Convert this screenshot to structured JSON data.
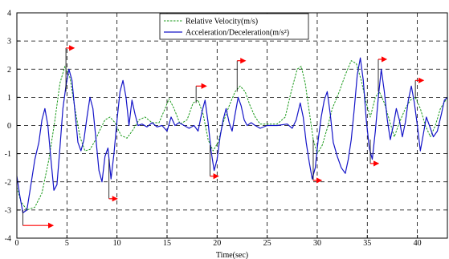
{
  "chart_data": {
    "type": "line",
    "xlabel": "Time(sec)",
    "ylabel": "",
    "xlim": [
      0,
      43
    ],
    "ylim": [
      -4,
      4
    ],
    "x_ticks": [
      0,
      5,
      10,
      15,
      20,
      25,
      30,
      35,
      40
    ],
    "y_ticks": [
      -4,
      -3,
      -2,
      -1,
      0,
      1,
      2,
      3,
      4
    ],
    "grid": true,
    "legend_position": "top-center",
    "series": [
      {
        "name": "Relative Velocity(m/s)",
        "color": "#1a9a1a",
        "style": "dashed",
        "points": [
          [
            0,
            -2.2
          ],
          [
            0.4,
            -2.7
          ],
          [
            1,
            -3.0
          ],
          [
            1.8,
            -2.9
          ],
          [
            2.5,
            -2.4
          ],
          [
            3.2,
            -1.2
          ],
          [
            3.8,
            0.2
          ],
          [
            4.3,
            1.5
          ],
          [
            4.8,
            2.1
          ],
          [
            5.3,
            1.7
          ],
          [
            5.8,
            0.6
          ],
          [
            6.3,
            -0.4
          ],
          [
            6.8,
            -0.9
          ],
          [
            7.3,
            -0.85
          ],
          [
            7.8,
            -0.55
          ],
          [
            8.3,
            -0.15
          ],
          [
            8.8,
            0.2
          ],
          [
            9.3,
            0.3
          ],
          [
            9.8,
            0.1
          ],
          [
            10.4,
            -0.35
          ],
          [
            11,
            -0.45
          ],
          [
            11.6,
            -0.15
          ],
          [
            12.2,
            0.2
          ],
          [
            12.8,
            0.3
          ],
          [
            13.5,
            0.1
          ],
          [
            14.2,
            0.1
          ],
          [
            14.8,
            0.6
          ],
          [
            15.2,
            0.95
          ],
          [
            15.7,
            0.6
          ],
          [
            16.3,
            0.05
          ],
          [
            17,
            0.2
          ],
          [
            17.6,
            0.8
          ],
          [
            18.1,
            0.9
          ],
          [
            18.6,
            0.4
          ],
          [
            19.1,
            -0.5
          ],
          [
            19.6,
            -0.9
          ],
          [
            20.1,
            -0.6
          ],
          [
            20.6,
            0.1
          ],
          [
            21.2,
            0.7
          ],
          [
            21.8,
            1.2
          ],
          [
            22.3,
            1.4
          ],
          [
            22.8,
            1.2
          ],
          [
            23.3,
            0.7
          ],
          [
            23.8,
            0.3
          ],
          [
            24.3,
            0.05
          ],
          [
            25,
            0.05
          ],
          [
            26,
            0.05
          ],
          [
            26.8,
            0.3
          ],
          [
            27.4,
            1.2
          ],
          [
            28,
            2.0
          ],
          [
            28.4,
            2.1
          ],
          [
            28.8,
            1.5
          ],
          [
            29.2,
            0.5
          ],
          [
            29.6,
            -0.5
          ],
          [
            30,
            -1.0
          ],
          [
            30.5,
            -0.7
          ],
          [
            31,
            -0.1
          ],
          [
            31.5,
            0.6
          ],
          [
            32.2,
            1.2
          ],
          [
            32.8,
            1.8
          ],
          [
            33.4,
            2.3
          ],
          [
            33.9,
            2.2
          ],
          [
            34.4,
            1.6
          ],
          [
            34.9,
            0.8
          ],
          [
            35.3,
            0.3
          ],
          [
            35.8,
            1.0
          ],
          [
            36.2,
            1.2
          ],
          [
            36.7,
            0.8
          ],
          [
            37.2,
            0.2
          ],
          [
            37.7,
            -0.4
          ],
          [
            38.2,
            0.1
          ],
          [
            38.8,
            0.6
          ],
          [
            39.3,
            0.9
          ],
          [
            39.8,
            1.0
          ],
          [
            40.3,
            0.6
          ],
          [
            40.8,
            0.0
          ],
          [
            41.3,
            -0.4
          ],
          [
            41.8,
            0.0
          ],
          [
            42.3,
            0.6
          ],
          [
            43,
            1.0
          ]
        ]
      },
      {
        "name": "Acceleration/Deceleration(m/s²)",
        "color": "#1414c8",
        "style": "solid",
        "points": [
          [
            0,
            -1.8
          ],
          [
            0.3,
            -2.5
          ],
          [
            0.6,
            -3.1
          ],
          [
            1,
            -3.0
          ],
          [
            1.4,
            -2.1
          ],
          [
            1.8,
            -1.2
          ],
          [
            2.2,
            -0.6
          ],
          [
            2.5,
            0.2
          ],
          [
            2.8,
            0.6
          ],
          [
            3.1,
            0.0
          ],
          [
            3.4,
            -1.2
          ],
          [
            3.7,
            -2.3
          ],
          [
            4.0,
            -2.1
          ],
          [
            4.3,
            -0.8
          ],
          [
            4.6,
            0.6
          ],
          [
            4.9,
            1.4
          ],
          [
            5.2,
            2.0
          ],
          [
            5.5,
            1.6
          ],
          [
            5.8,
            0.5
          ],
          [
            6.1,
            -0.6
          ],
          [
            6.4,
            -0.9
          ],
          [
            6.7,
            -0.5
          ],
          [
            7.0,
            0.3
          ],
          [
            7.3,
            1.0
          ],
          [
            7.6,
            0.6
          ],
          [
            7.9,
            -0.5
          ],
          [
            8.2,
            -1.6
          ],
          [
            8.5,
            -2.0
          ],
          [
            8.8,
            -1.1
          ],
          [
            9.1,
            -0.8
          ],
          [
            9.4,
            -1.9
          ],
          [
            9.7,
            -1.0
          ],
          [
            10,
            0.2
          ],
          [
            10.3,
            1.2
          ],
          [
            10.6,
            1.6
          ],
          [
            10.9,
            1.0
          ],
          [
            11.2,
            0.0
          ],
          [
            11.5,
            0.9
          ],
          [
            11.8,
            0.4
          ],
          [
            12.1,
            0.0
          ],
          [
            12.5,
            0.05
          ],
          [
            13,
            -0.05
          ],
          [
            13.5,
            0.1
          ],
          [
            14,
            -0.05
          ],
          [
            14.5,
            0.0
          ],
          [
            15,
            -0.2
          ],
          [
            15.4,
            0.3
          ],
          [
            15.8,
            0.0
          ],
          [
            16.2,
            0.1
          ],
          [
            16.7,
            0.0
          ],
          [
            17.2,
            -0.1
          ],
          [
            17.7,
            0.0
          ],
          [
            18.1,
            -0.2
          ],
          [
            18.5,
            0.5
          ],
          [
            18.8,
            0.9
          ],
          [
            19.1,
            0.1
          ],
          [
            19.4,
            -0.9
          ],
          [
            19.7,
            -1.6
          ],
          [
            20.0,
            -1.2
          ],
          [
            20.3,
            -0.4
          ],
          [
            20.6,
            0.2
          ],
          [
            20.9,
            0.6
          ],
          [
            21.2,
            0.1
          ],
          [
            21.5,
            -0.2
          ],
          [
            21.8,
            0.4
          ],
          [
            22.1,
            1.0
          ],
          [
            22.4,
            0.7
          ],
          [
            22.7,
            0.2
          ],
          [
            23.0,
            0.0
          ],
          [
            23.4,
            0.1
          ],
          [
            23.8,
            0.0
          ],
          [
            24.3,
            -0.1
          ],
          [
            25,
            0.0
          ],
          [
            26,
            0.0
          ],
          [
            27,
            0.05
          ],
          [
            27.5,
            -0.1
          ],
          [
            27.9,
            0.2
          ],
          [
            28.3,
            0.8
          ],
          [
            28.6,
            0.3
          ],
          [
            28.9,
            -0.6
          ],
          [
            29.2,
            -1.3
          ],
          [
            29.5,
            -1.9
          ],
          [
            29.8,
            -1.5
          ],
          [
            30.1,
            -0.5
          ],
          [
            30.4,
            0.3
          ],
          [
            30.7,
            0.9
          ],
          [
            31.0,
            1.2
          ],
          [
            31.3,
            0.4
          ],
          [
            31.6,
            -0.6
          ],
          [
            32.0,
            -1.1
          ],
          [
            32.4,
            -1.5
          ],
          [
            32.8,
            -1.7
          ],
          [
            33.1,
            -1.2
          ],
          [
            33.4,
            -0.5
          ],
          [
            33.7,
            0.6
          ],
          [
            34.0,
            1.8
          ],
          [
            34.3,
            2.4
          ],
          [
            34.6,
            1.6
          ],
          [
            34.9,
            0.2
          ],
          [
            35.2,
            -0.8
          ],
          [
            35.5,
            -1.2
          ],
          [
            35.8,
            -0.2
          ],
          [
            36.1,
            1.0
          ],
          [
            36.4,
            2.0
          ],
          [
            36.7,
            1.2
          ],
          [
            37.0,
            0.2
          ],
          [
            37.3,
            -0.5
          ],
          [
            37.6,
            0.0
          ],
          [
            37.9,
            0.6
          ],
          [
            38.2,
            0.2
          ],
          [
            38.5,
            -0.4
          ],
          [
            38.8,
            0.1
          ],
          [
            39.1,
            0.9
          ],
          [
            39.4,
            1.4
          ],
          [
            39.7,
            0.8
          ],
          [
            40.0,
            0.0
          ],
          [
            40.3,
            -0.9
          ],
          [
            40.6,
            -0.3
          ],
          [
            40.9,
            0.3
          ],
          [
            41.2,
            0.0
          ],
          [
            41.6,
            -0.4
          ],
          [
            42.0,
            -0.2
          ],
          [
            42.4,
            0.4
          ],
          [
            42.7,
            0.9
          ],
          [
            43,
            1.0
          ]
        ]
      }
    ],
    "annotations": [
      {
        "x1": 0.6,
        "x2": 3.6,
        "y_from": -3.0,
        "y_to": -3.55,
        "color": "#ff0000"
      },
      {
        "x1": 4.9,
        "x2": 4.9,
        "y_from": 1.2,
        "y_to": 2.75,
        "color": "#ff0000"
      },
      {
        "x1": 9.2,
        "x2": 9.2,
        "y_from": -1.2,
        "y_to": -2.6,
        "color": "#ff0000"
      },
      {
        "x1": 17.9,
        "x2": 18.9,
        "y_from": 0.8,
        "y_to": 1.4,
        "color": "#ff0000"
      },
      {
        "x1": 19.3,
        "x2": 19.3,
        "y_from": -0.7,
        "y_to": -1.8,
        "color": "#ff0000"
      },
      {
        "x1": 22.0,
        "x2": 22.0,
        "y_from": 1.2,
        "y_to": 2.3,
        "color": "#ff0000"
      },
      {
        "x1": 29.6,
        "x2": 29.6,
        "y_from": -0.5,
        "y_to": -1.95,
        "color": "#ff0000"
      },
      {
        "x1": 35.3,
        "x2": 35.3,
        "y_from": -0.5,
        "y_to": -1.35,
        "color": "#ff0000"
      },
      {
        "x1": 36.1,
        "x2": 36.1,
        "y_from": 1.2,
        "y_to": 2.35,
        "color": "#ff0000"
      },
      {
        "x1": 39.8,
        "x2": 40.6,
        "y_from": 1.0,
        "y_to": 1.6,
        "color": "#ff0000"
      }
    ]
  }
}
